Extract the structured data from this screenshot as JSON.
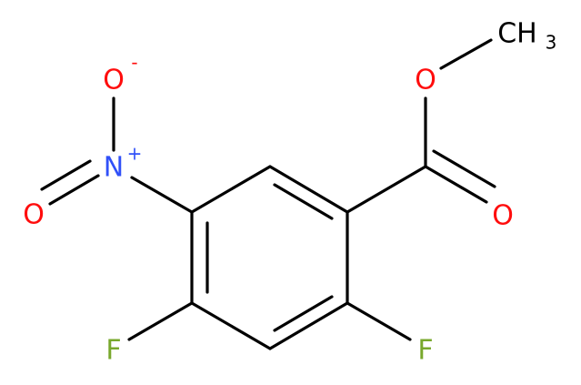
{
  "atoms": [
    {
      "label": "O",
      "charge": "-"
    },
    {
      "label": "N",
      "charge": "+"
    },
    {
      "label": "O"
    },
    {
      "label": "O"
    },
    {
      "label": "O"
    },
    {
      "label": "CH",
      "subscript": "3"
    },
    {
      "label": "F"
    },
    {
      "label": "F"
    }
  ]
}
